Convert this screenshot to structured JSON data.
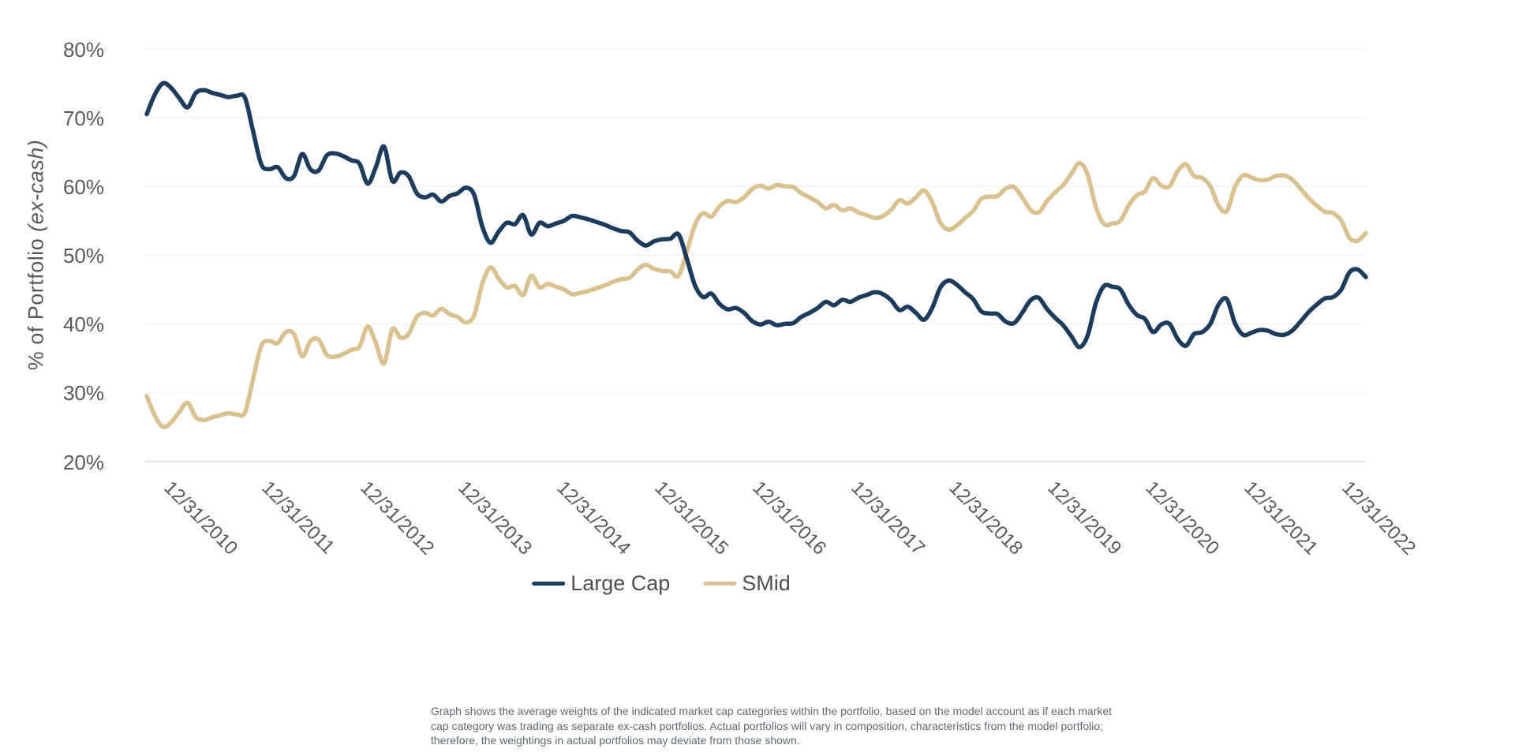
{
  "page": {
    "background": "#ffffff"
  },
  "colors": {
    "large_cap_line": "#1C3B5D",
    "smid_line": "#D9C28F",
    "gridline": "#F3F3F3",
    "axis_line": "#D9D9D9",
    "tick_label": "#595959",
    "legend_label": "#4F4F4F",
    "footnote_text": "#5E6872"
  },
  "chart_data": {
    "type": "line",
    "title": "",
    "ylabel": "% of Portfolio (ex-cash)",
    "ylabel_regular": "% of Portfolio ",
    "ylabel_italic": "(ex-cash)",
    "xlabel": "",
    "ylim": [
      20,
      80
    ],
    "y_ticks": [
      80,
      70,
      60,
      50,
      40,
      30,
      20
    ],
    "y_tick_labels": [
      "80%",
      "70%",
      "60%",
      "50%",
      "40%",
      "30%",
      "20%"
    ],
    "grid": "horizontal-only",
    "legend_position": "bottom-center",
    "x_interval": "monthly",
    "x_start_month": "2010-07",
    "x_end_month": "2022-12",
    "x_tick_labels": [
      "12/31/2010",
      "12/31/2011",
      "12/31/2012",
      "12/31/2013",
      "12/31/2014",
      "12/31/2015",
      "12/31/2016",
      "12/31/2017",
      "12/31/2018",
      "12/31/2019",
      "12/31/2020",
      "12/31/2021",
      "12/31/2022"
    ],
    "x_tick_month_indices": [
      5,
      17,
      29,
      41,
      53,
      65,
      77,
      89,
      101,
      113,
      125,
      137,
      149
    ],
    "series": [
      {
        "name": "Large Cap",
        "color": "#1C3B5D",
        "values": [
          70.5,
          73.4,
          75.0,
          74.3,
          72.8,
          71.5,
          73.6,
          74.0,
          73.6,
          73.3,
          73.0,
          73.2,
          72.9,
          68.0,
          63.2,
          62.5,
          62.8,
          61.2,
          61.5,
          64.7,
          62.5,
          62.3,
          64.5,
          64.8,
          64.4,
          63.8,
          63.3,
          60.4,
          62.8,
          65.8,
          60.8,
          62.0,
          61.5,
          59.0,
          58.4,
          58.8,
          57.8,
          58.6,
          59.0,
          59.8,
          58.8,
          54.2,
          51.8,
          53.4,
          54.7,
          54.5,
          55.8,
          53.0,
          54.7,
          54.2,
          54.6,
          55.0,
          55.7,
          55.5,
          55.2,
          54.8,
          54.4,
          53.9,
          53.5,
          53.3,
          52.1,
          51.4,
          52.0,
          52.3,
          52.4,
          53.0,
          49.5,
          45.6,
          43.9,
          44.4,
          42.9,
          42.1,
          42.3,
          41.6,
          40.4,
          39.9,
          40.3,
          39.8,
          40.0,
          40.1,
          41.0,
          41.6,
          42.3,
          43.2,
          42.7,
          43.5,
          43.2,
          43.8,
          44.2,
          44.6,
          44.3,
          43.4,
          42.0,
          42.5,
          41.6,
          40.6,
          42.3,
          45.3,
          46.3,
          45.7,
          44.6,
          43.6,
          41.8,
          41.5,
          41.4,
          40.3,
          40.1,
          41.6,
          43.4,
          43.8,
          42.2,
          40.9,
          39.8,
          38.2,
          36.6,
          38.3,
          43.0,
          45.5,
          45.4,
          45.0,
          42.8,
          41.3,
          40.7,
          38.8,
          39.9,
          40.0,
          37.8,
          36.8,
          38.5,
          38.8,
          40.0,
          42.8,
          43.6,
          40.1,
          38.4,
          38.7,
          39.1,
          39.0,
          38.5,
          38.4,
          39.0,
          40.3,
          41.7,
          42.8,
          43.7,
          43.9,
          45.0,
          47.5,
          47.9,
          46.8
        ]
      },
      {
        "name": "SMid",
        "color": "#D9C28F",
        "values": [
          29.5,
          26.6,
          25.0,
          25.7,
          27.2,
          28.5,
          26.4,
          26.0,
          26.4,
          26.7,
          27.0,
          26.8,
          27.1,
          32.0,
          36.8,
          37.5,
          37.2,
          38.8,
          38.5,
          35.3,
          37.5,
          37.7,
          35.5,
          35.2,
          35.6,
          36.2,
          36.7,
          39.6,
          37.2,
          34.2,
          39.2,
          38.0,
          38.5,
          41.0,
          41.6,
          41.2,
          42.2,
          41.4,
          41.0,
          40.2,
          41.2,
          45.8,
          48.2,
          46.6,
          45.3,
          45.5,
          44.2,
          47.0,
          45.3,
          45.8,
          45.4,
          45.0,
          44.3,
          44.5,
          44.8,
          45.2,
          45.6,
          46.1,
          46.5,
          46.7,
          47.9,
          48.6,
          48.0,
          47.7,
          47.6,
          47.0,
          50.5,
          54.4,
          56.1,
          55.6,
          57.1,
          57.9,
          57.7,
          58.4,
          59.6,
          60.1,
          59.7,
          60.2,
          60.0,
          59.9,
          59.0,
          58.4,
          57.7,
          56.8,
          57.3,
          56.5,
          56.8,
          56.2,
          55.8,
          55.4,
          55.7,
          56.6,
          58.0,
          57.5,
          58.4,
          59.4,
          57.7,
          54.7,
          53.7,
          54.3,
          55.4,
          56.4,
          58.2,
          58.5,
          58.6,
          59.7,
          59.9,
          58.4,
          56.6,
          56.2,
          57.8,
          59.1,
          60.2,
          61.8,
          63.4,
          61.7,
          57.0,
          54.5,
          54.6,
          55.0,
          57.2,
          58.7,
          59.3,
          61.2,
          60.1,
          60.0,
          62.2,
          63.2,
          61.5,
          61.2,
          60.0,
          57.2,
          56.4,
          59.9,
          61.6,
          61.3,
          60.9,
          61.0,
          61.5,
          61.6,
          61.0,
          59.7,
          58.3,
          57.2,
          56.3,
          56.1,
          55.0,
          52.5,
          52.1,
          53.2
        ]
      }
    ]
  },
  "legend": {
    "items": [
      {
        "label": "Large Cap",
        "color": "#1C3B5D"
      },
      {
        "label": "SMid",
        "color": "#D9C28F"
      }
    ]
  },
  "footnote": {
    "lines": [
      "Graph shows the average weights of the indicated market cap categories within the portfolio, based on the model account as if each market",
      "cap category was trading as separate ex-cash portfolios. Actual portfolios will vary in composition, characteristics from the model portfolio;",
      "therefore, the weightings in actual portfolios may deviate from those shown."
    ]
  }
}
